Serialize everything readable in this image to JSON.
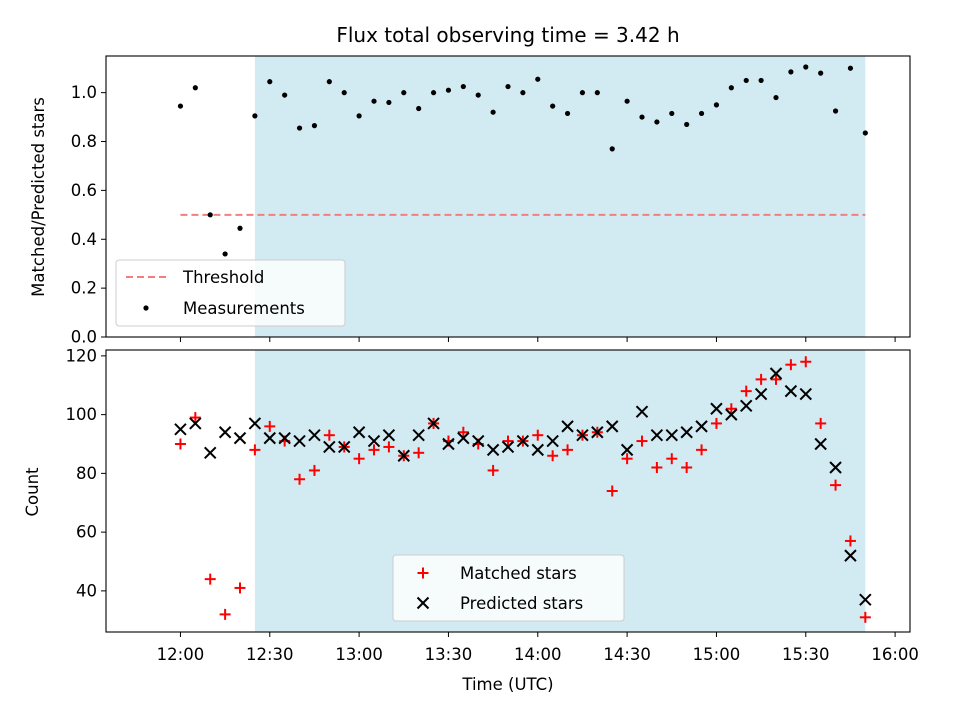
{
  "chart_data": [
    {
      "type": "scatter",
      "title": "Flux total observing time = 3.42 h",
      "xlabel": "",
      "ylabel": "Matched/Predicted stars",
      "xlim": [
        695,
        965
      ],
      "ylim": [
        0.0,
        1.15
      ],
      "yticks": [
        0.0,
        0.2,
        0.4,
        0.6,
        0.8,
        1.0
      ],
      "shaded_x_range": [
        745,
        950
      ],
      "threshold": {
        "name": "Threshold",
        "value": 0.5,
        "x_range": [
          720,
          950
        ],
        "color": "#f08080"
      },
      "series": [
        {
          "name": "Measurements",
          "color": "#000000",
          "x": [
            720,
            725,
            730,
            735,
            740,
            745,
            750,
            755,
            760,
            765,
            770,
            775,
            780,
            785,
            790,
            795,
            800,
            805,
            810,
            815,
            820,
            825,
            830,
            835,
            840,
            845,
            850,
            855,
            860,
            865,
            870,
            875,
            880,
            885,
            890,
            895,
            900,
            905,
            910,
            915,
            920,
            925,
            930,
            935,
            940,
            945,
            950
          ],
          "y": [
            0.945,
            1.02,
            0.5,
            0.34,
            0.445,
            0.905,
            1.045,
            0.99,
            0.855,
            0.865,
            1.045,
            1.0,
            0.905,
            0.965,
            0.96,
            1.0,
            0.935,
            1.0,
            1.01,
            1.025,
            0.99,
            0.92,
            1.025,
            1.0,
            1.055,
            0.945,
            0.915,
            1.0,
            1.0,
            0.77,
            0.965,
            0.9,
            0.88,
            0.915,
            0.87,
            0.915,
            0.95,
            1.02,
            1.05,
            1.05,
            0.98,
            1.085,
            1.105,
            1.08,
            0.925,
            1.1,
            0.835
          ]
        }
      ]
    },
    {
      "type": "scatter",
      "title": "",
      "xlabel": "Time (UTC)",
      "ylabel": "Count",
      "xlim": [
        695,
        965
      ],
      "ylim": [
        26,
        122
      ],
      "yticks": [
        40,
        60,
        80,
        100,
        120
      ],
      "xticks": [
        720,
        750,
        780,
        810,
        840,
        870,
        900,
        930,
        960
      ],
      "xtick_labels": [
        "12:00",
        "12:30",
        "13:00",
        "13:30",
        "14:00",
        "14:30",
        "15:00",
        "15:30",
        "16:00"
      ],
      "shaded_x_range": [
        745,
        950
      ],
      "series": [
        {
          "name": "Matched stars",
          "marker": "plus",
          "color": "#ff0000",
          "x": [
            720,
            725,
            730,
            735,
            740,
            745,
            750,
            755,
            760,
            765,
            770,
            775,
            780,
            785,
            790,
            795,
            800,
            805,
            810,
            815,
            820,
            825,
            830,
            835,
            840,
            845,
            850,
            855,
            860,
            865,
            870,
            875,
            880,
            885,
            890,
            895,
            900,
            905,
            910,
            915,
            920,
            925,
            930,
            935,
            940,
            945,
            950
          ],
          "y": [
            90,
            99,
            44,
            32,
            41,
            88,
            96,
            91,
            78,
            81,
            93,
            89,
            85,
            88,
            89,
            86,
            87,
            97,
            91,
            94,
            90,
            81,
            91,
            91,
            93,
            86,
            88,
            93,
            94,
            74,
            85,
            91,
            82,
            85,
            82,
            88,
            97,
            102,
            108,
            112,
            112,
            117,
            118,
            97,
            76,
            57,
            31
          ]
        },
        {
          "name": "Predicted stars",
          "marker": "x",
          "color": "#000000",
          "x": [
            720,
            725,
            730,
            735,
            740,
            745,
            750,
            755,
            760,
            765,
            770,
            775,
            780,
            785,
            790,
            795,
            800,
            805,
            810,
            815,
            820,
            825,
            830,
            835,
            840,
            845,
            850,
            855,
            860,
            865,
            870,
            875,
            880,
            885,
            890,
            895,
            900,
            905,
            910,
            915,
            920,
            925,
            930,
            935,
            940,
            945,
            950
          ],
          "y": [
            95,
            97,
            87,
            94,
            92,
            97,
            92,
            92,
            91,
            93,
            89,
            89,
            94,
            91,
            93,
            86,
            93,
            97,
            90,
            92,
            91,
            88,
            89,
            91,
            88,
            91,
            96,
            93,
            94,
            96,
            88,
            101,
            93,
            93,
            94,
            96,
            102,
            100,
            103,
            107,
            114,
            108,
            107,
            90,
            82,
            52,
            37
          ]
        }
      ]
    }
  ],
  "colors": {
    "shade": "#add8e6",
    "threshold": "#f08080"
  }
}
